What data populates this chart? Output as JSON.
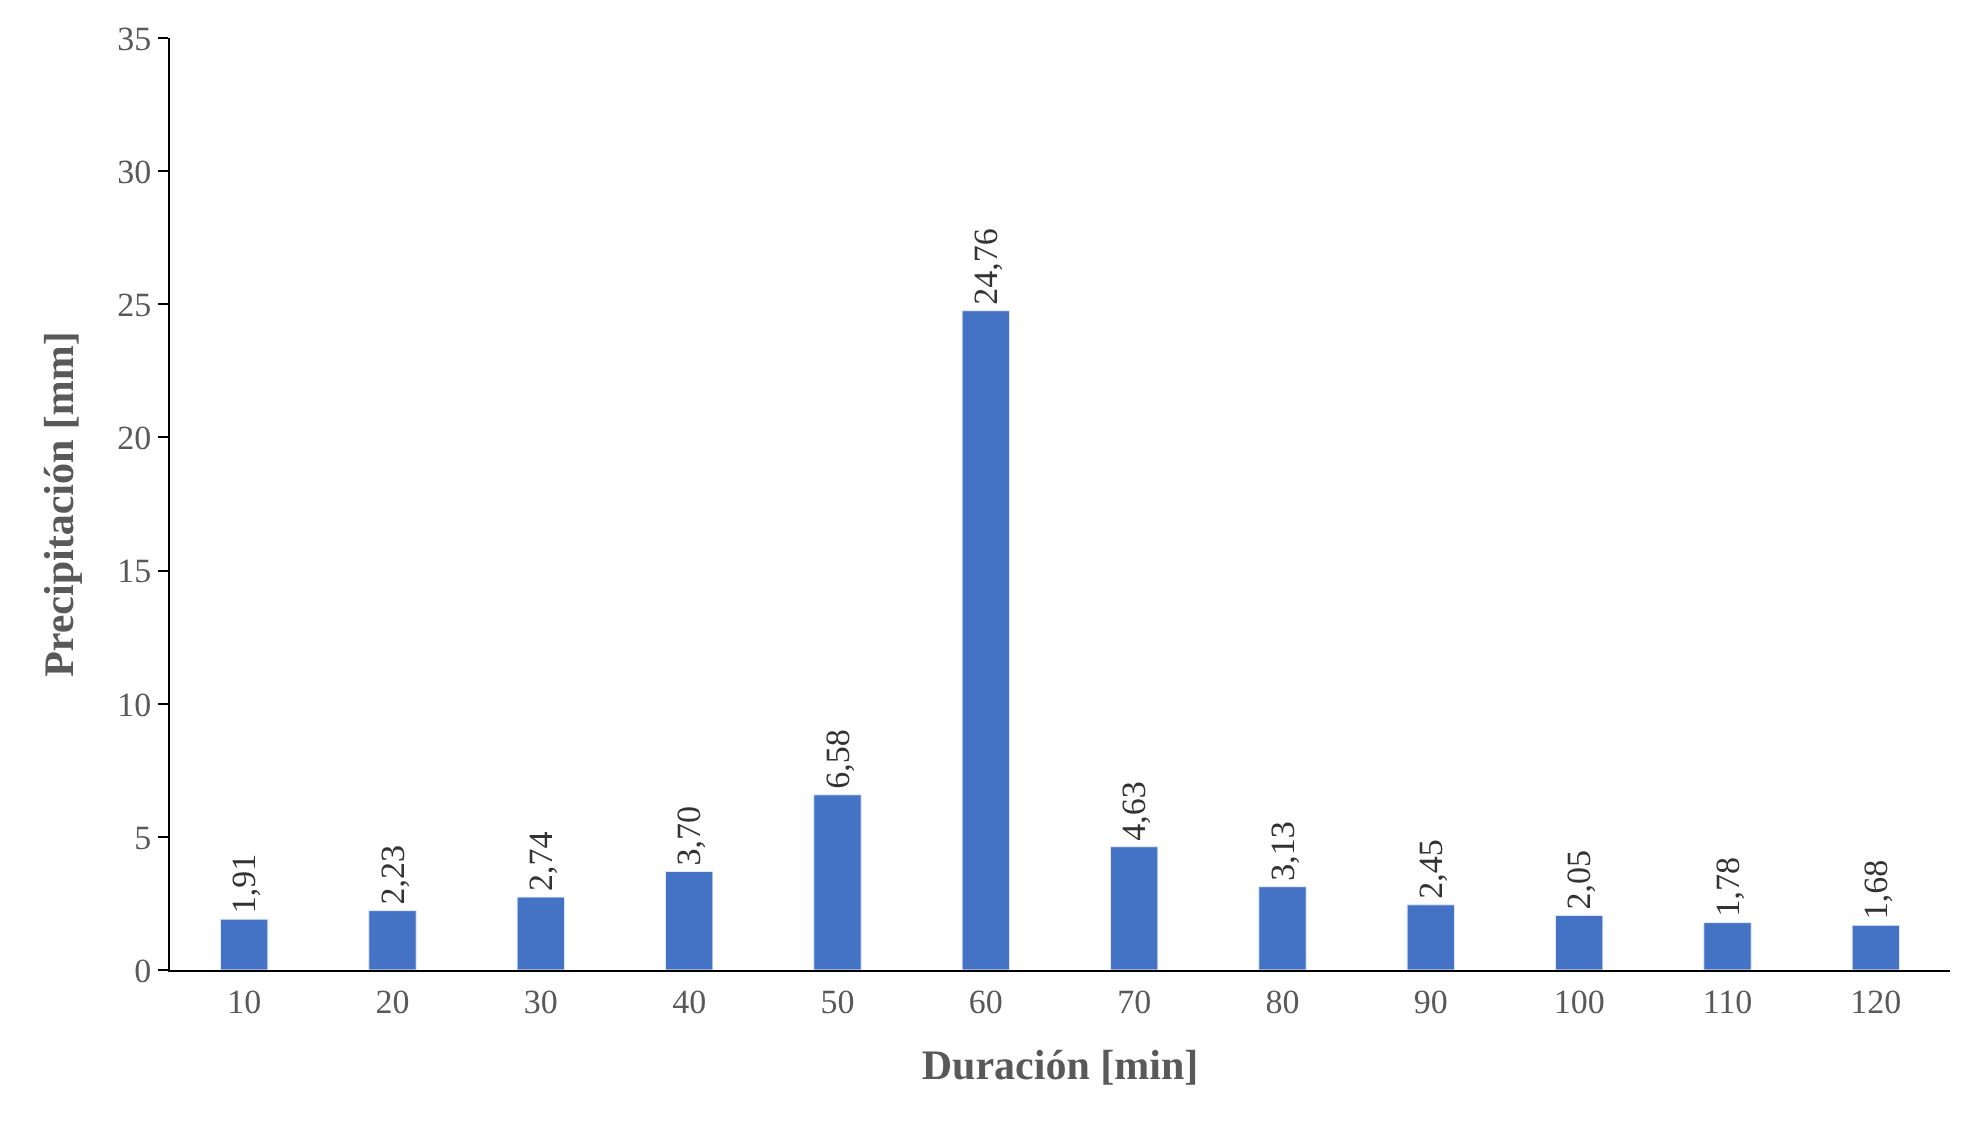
{
  "chart_data": {
    "type": "bar",
    "xlabel": "Duración [min]",
    "ylabel": "Precipitación [mm]",
    "categories": [
      "10",
      "20",
      "30",
      "40",
      "50",
      "60",
      "70",
      "80",
      "90",
      "100",
      "110",
      "120"
    ],
    "values": [
      1.91,
      2.23,
      2.74,
      3.7,
      6.58,
      24.76,
      4.63,
      3.13,
      2.45,
      2.05,
      1.78,
      1.68
    ],
    "value_labels": [
      "1,91",
      "2,23",
      "2,74",
      "3,70",
      "6,58",
      "24,76",
      "4,63",
      "3,13",
      "2,45",
      "2,05",
      "1,78",
      "1,68"
    ],
    "color": "#4472c4",
    "ylim": [
      0,
      35
    ],
    "yticks": [
      0,
      5,
      10,
      15,
      20,
      25,
      30,
      35
    ],
    "legend": false
  }
}
